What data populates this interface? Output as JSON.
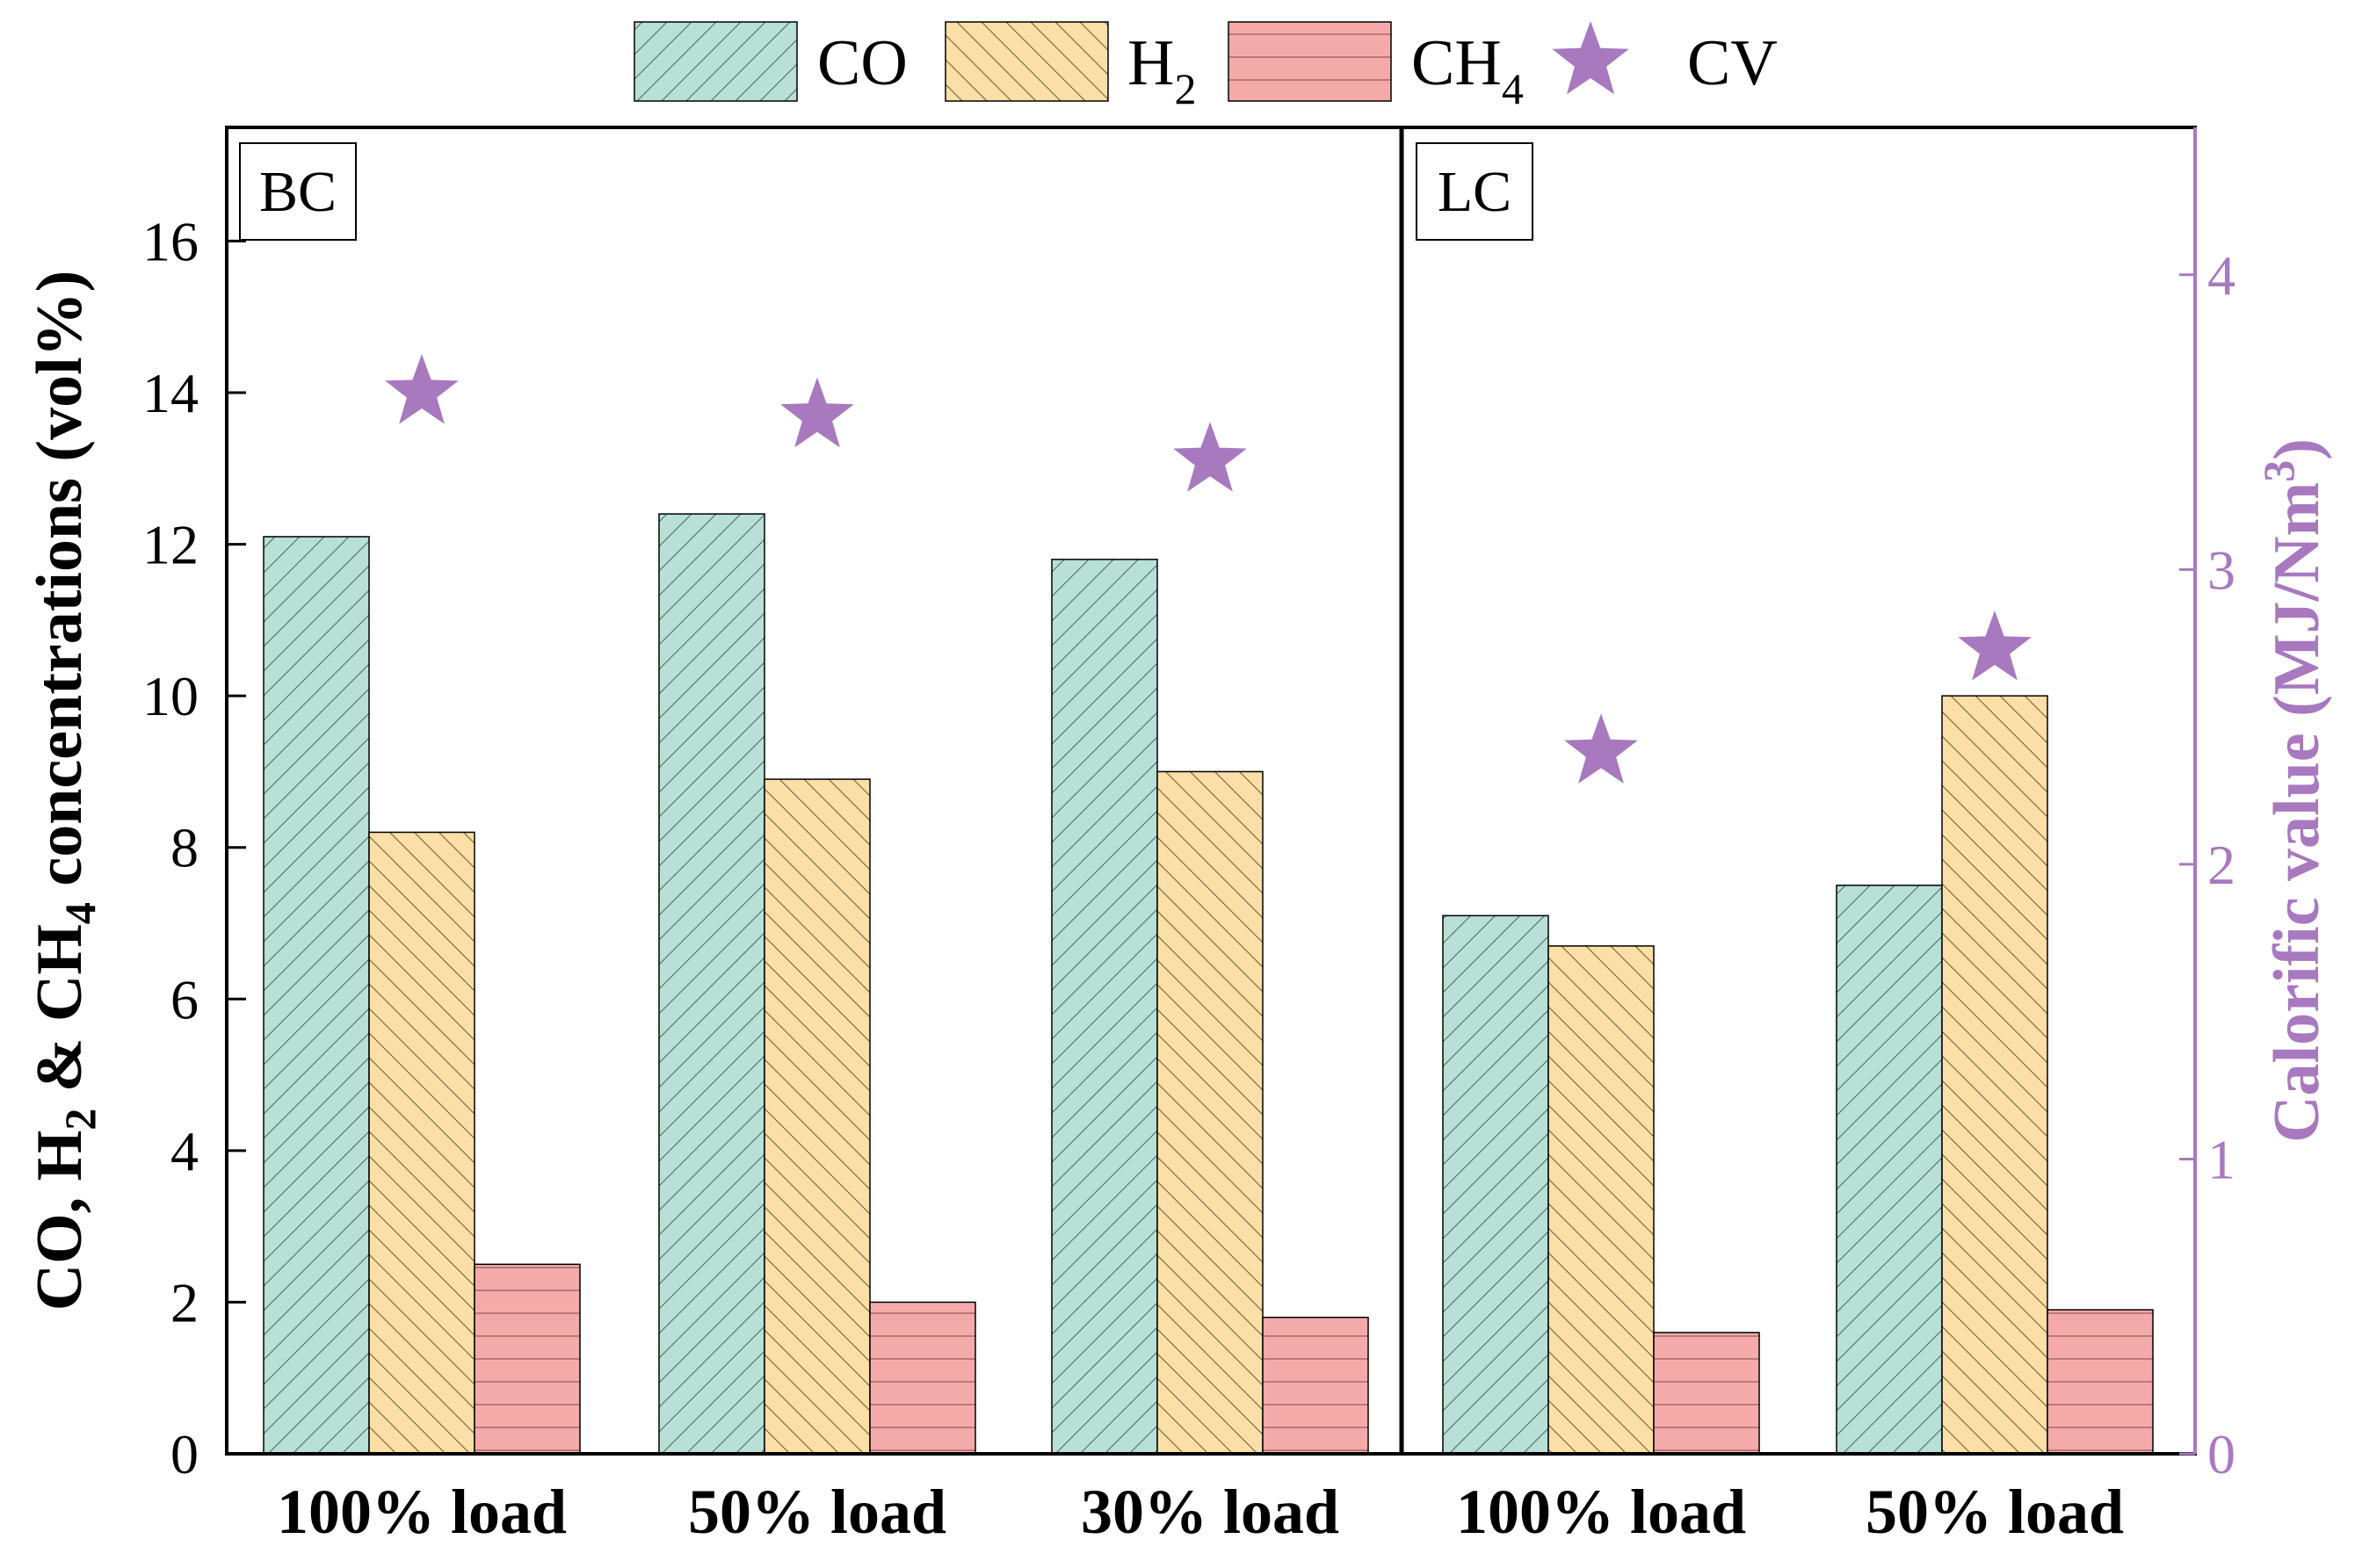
{
  "chart_data": {
    "type": "bar",
    "groups": [
      {
        "label": "BC",
        "categories": [
          "100% load",
          "50% load",
          "30% load"
        ]
      },
      {
        "label": "LC",
        "categories": [
          "100% load",
          "50% load"
        ]
      }
    ],
    "categories": [
      "100% load",
      "50% load",
      "30% load",
      "100% load",
      "50% load"
    ],
    "series": [
      {
        "name": "CO",
        "axis": "left",
        "values": [
          12.1,
          12.4,
          11.8,
          7.1,
          7.5
        ],
        "color": "#b8e0d6",
        "hatch": "diag-right"
      },
      {
        "name": "H2",
        "axis": "left",
        "values": [
          8.2,
          8.9,
          9.0,
          6.7,
          10.0
        ],
        "color": "#fbdfa6",
        "hatch": "diag-left"
      },
      {
        "name": "CH4",
        "axis": "left",
        "values": [
          2.5,
          2.0,
          1.8,
          1.6,
          1.9
        ],
        "color": "#f5aaaa",
        "hatch": "horizontal"
      },
      {
        "name": "CV",
        "axis": "right",
        "type": "scatter",
        "marker": "star",
        "values": [
          3.6,
          3.52,
          3.37,
          2.38,
          2.73
        ],
        "color": "#a879bf"
      }
    ],
    "legend": {
      "position": "top",
      "items": [
        {
          "base": "CO",
          "sub": ""
        },
        {
          "base": "H",
          "sub": "2"
        },
        {
          "base": "CH",
          "sub": "4"
        },
        {
          "base": "CV",
          "sub": ""
        }
      ]
    },
    "ylabel": {
      "parts": [
        {
          "t": "CO, H",
          "sub": false
        },
        {
          "t": "2",
          "sub": true
        },
        {
          "t": " & CH",
          "sub": false
        },
        {
          "t": "4",
          "sub": true
        },
        {
          "t": " concentrations (vol%)",
          "sub": false
        }
      ]
    },
    "y2label": {
      "parts": [
        {
          "t": "Calorific value (MJ/Nm",
          "sup": false
        },
        {
          "t": "3",
          "sup": true
        },
        {
          "t": ")",
          "sup": false
        }
      ]
    },
    "ylim": [
      0,
      17.5
    ],
    "yticks": [
      "0",
      "2",
      "4",
      "6",
      "8",
      "10",
      "12",
      "14",
      "16"
    ],
    "y2lim": [
      0,
      4.5
    ],
    "y2ticks": [
      "0",
      "1",
      "2",
      "3",
      "4"
    ],
    "axis_color_right": "#a879bf"
  }
}
